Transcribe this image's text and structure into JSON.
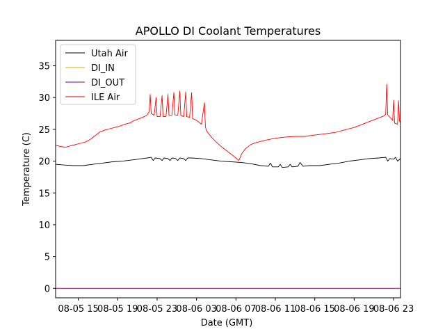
{
  "chart_data": {
    "type": "line",
    "title": "APOLLO DI Coolant Temperatures",
    "xlabel": "Date (GMT)",
    "ylabel": "Temperature (C)",
    "xlim_hours": [
      12.7,
      47.7
    ],
    "ylim": [
      -1.5,
      39
    ],
    "x_ticks": [
      {
        "hours": 15,
        "label": "08-05 15"
      },
      {
        "hours": 19,
        "label": "08-05 19"
      },
      {
        "hours": 23,
        "label": "08-05 23"
      },
      {
        "hours": 27,
        "label": "08-06 03"
      },
      {
        "hours": 31,
        "label": "08-06 07"
      },
      {
        "hours": 35,
        "label": "08-06 11"
      },
      {
        "hours": 39,
        "label": "08-06 15"
      },
      {
        "hours": 43,
        "label": "08-06 19"
      },
      {
        "hours": 47,
        "label": "08-06 23"
      }
    ],
    "y_ticks": [
      0,
      5,
      10,
      15,
      20,
      25,
      30,
      35
    ],
    "legend_position": "upper-left",
    "series": [
      {
        "name": "Utah Air",
        "color": "#000000",
        "points": [
          [
            12.7,
            19.5
          ],
          [
            13.5,
            19.4
          ],
          [
            14.5,
            19.3
          ],
          [
            15.5,
            19.3
          ],
          [
            16.5,
            19.5
          ],
          [
            17.5,
            19.7
          ],
          [
            18.5,
            19.9
          ],
          [
            19.5,
            20.0
          ],
          [
            20.5,
            20.2
          ],
          [
            21.5,
            20.4
          ],
          [
            22.0,
            20.5
          ],
          [
            22.4,
            20.6
          ],
          [
            22.6,
            20.1
          ],
          [
            22.8,
            20.5
          ],
          [
            23.3,
            20.4
          ],
          [
            23.5,
            20.1
          ],
          [
            23.7,
            20.5
          ],
          [
            24.1,
            20.4
          ],
          [
            24.3,
            20.1
          ],
          [
            24.5,
            20.5
          ],
          [
            24.9,
            20.4
          ],
          [
            25.1,
            20.1
          ],
          [
            25.3,
            20.5
          ],
          [
            25.7,
            20.4
          ],
          [
            25.9,
            20.1
          ],
          [
            26.1,
            20.5
          ],
          [
            26.5,
            20.5
          ],
          [
            27.5,
            20.4
          ],
          [
            28.5,
            20.2
          ],
          [
            29.5,
            20.0
          ],
          [
            30.5,
            19.9
          ],
          [
            31.5,
            19.8
          ],
          [
            32.5,
            19.6
          ],
          [
            33.5,
            19.3
          ],
          [
            34.3,
            19.2
          ],
          [
            34.5,
            19.7
          ],
          [
            34.7,
            19.1
          ],
          [
            35.3,
            19.1
          ],
          [
            35.5,
            19.5
          ],
          [
            35.7,
            19.0
          ],
          [
            36.3,
            19.1
          ],
          [
            36.5,
            19.5
          ],
          [
            36.7,
            19.1
          ],
          [
            37.3,
            19.2
          ],
          [
            37.5,
            19.8
          ],
          [
            37.8,
            19.2
          ],
          [
            38.5,
            19.3
          ],
          [
            39.5,
            19.3
          ],
          [
            40.5,
            19.5
          ],
          [
            41.5,
            19.7
          ],
          [
            42.5,
            20.0
          ],
          [
            43.5,
            20.2
          ],
          [
            44.5,
            20.4
          ],
          [
            45.5,
            20.5
          ],
          [
            46.2,
            20.6
          ],
          [
            46.4,
            20.0
          ],
          [
            46.6,
            20.4
          ],
          [
            47.0,
            20.3
          ],
          [
            47.2,
            20.6
          ],
          [
            47.4,
            20.0
          ],
          [
            47.7,
            20.4
          ]
        ]
      },
      {
        "name": "DI_IN",
        "color": "#d4b000",
        "points": [
          [
            12.7,
            0.0
          ],
          [
            47.7,
            0.0
          ]
        ]
      },
      {
        "name": "DI_OUT",
        "color": "#800080",
        "points": [
          [
            12.7,
            0.0
          ],
          [
            47.7,
            0.0
          ]
        ]
      },
      {
        "name": "ILE Air",
        "color": "#ff0000",
        "points": [
          [
            12.7,
            22.5
          ],
          [
            13.2,
            22.3
          ],
          [
            13.7,
            22.2
          ],
          [
            14.2,
            22.4
          ],
          [
            14.7,
            22.6
          ],
          [
            15.2,
            22.8
          ],
          [
            15.7,
            23.0
          ],
          [
            16.2,
            23.4
          ],
          [
            16.7,
            24.0
          ],
          [
            17.2,
            24.6
          ],
          [
            17.7,
            24.9
          ],
          [
            18.2,
            25.1
          ],
          [
            18.7,
            25.3
          ],
          [
            19.2,
            25.5
          ],
          [
            19.7,
            25.8
          ],
          [
            20.2,
            26.0
          ],
          [
            20.7,
            26.4
          ],
          [
            21.2,
            26.7
          ],
          [
            21.7,
            27.0
          ],
          [
            22.0,
            27.3
          ],
          [
            22.2,
            27.8
          ],
          [
            22.3,
            30.5
          ],
          [
            22.4,
            27.5
          ],
          [
            22.7,
            27.2
          ],
          [
            22.9,
            30.0
          ],
          [
            23.0,
            27.0
          ],
          [
            23.3,
            27.0
          ],
          [
            23.5,
            30.3
          ],
          [
            23.6,
            27.0
          ],
          [
            23.9,
            27.0
          ],
          [
            24.1,
            30.5
          ],
          [
            24.2,
            27.2
          ],
          [
            24.5,
            27.2
          ],
          [
            24.7,
            30.8
          ],
          [
            24.8,
            27.3
          ],
          [
            25.1,
            27.2
          ],
          [
            25.3,
            31.0
          ],
          [
            25.4,
            27.2
          ],
          [
            25.7,
            27.0
          ],
          [
            25.9,
            30.9
          ],
          [
            26.0,
            27.0
          ],
          [
            26.3,
            26.9
          ],
          [
            26.5,
            30.8
          ],
          [
            26.6,
            26.7
          ],
          [
            26.9,
            26.5
          ],
          [
            27.2,
            26.2
          ],
          [
            27.5,
            25.8
          ],
          [
            27.8,
            29.2
          ],
          [
            27.9,
            25.4
          ],
          [
            28.0,
            24.8
          ],
          [
            28.5,
            23.8
          ],
          [
            29.0,
            23.0
          ],
          [
            29.5,
            22.3
          ],
          [
            30.0,
            21.7
          ],
          [
            30.5,
            21.1
          ],
          [
            31.0,
            20.5
          ],
          [
            31.3,
            20.1
          ],
          [
            31.6,
            21.2
          ],
          [
            32.0,
            22.0
          ],
          [
            32.5,
            22.6
          ],
          [
            33.0,
            22.9
          ],
          [
            34.0,
            23.3
          ],
          [
            35.0,
            23.6
          ],
          [
            36.0,
            23.8
          ],
          [
            37.0,
            23.9
          ],
          [
            38.0,
            23.9
          ],
          [
            39.0,
            24.1
          ],
          [
            40.0,
            24.3
          ],
          [
            41.0,
            24.5
          ],
          [
            42.0,
            24.9
          ],
          [
            43.0,
            25.3
          ],
          [
            44.0,
            25.9
          ],
          [
            45.0,
            26.5
          ],
          [
            46.0,
            27.1
          ],
          [
            46.2,
            27.4
          ],
          [
            46.3,
            32.1
          ],
          [
            46.4,
            27.3
          ],
          [
            46.7,
            26.8
          ],
          [
            46.9,
            26.4
          ],
          [
            47.0,
            29.6
          ],
          [
            47.1,
            26.0
          ],
          [
            47.4,
            25.8
          ],
          [
            47.5,
            29.5
          ],
          [
            47.6,
            26.3
          ],
          [
            47.7,
            26.1
          ]
        ]
      }
    ]
  }
}
